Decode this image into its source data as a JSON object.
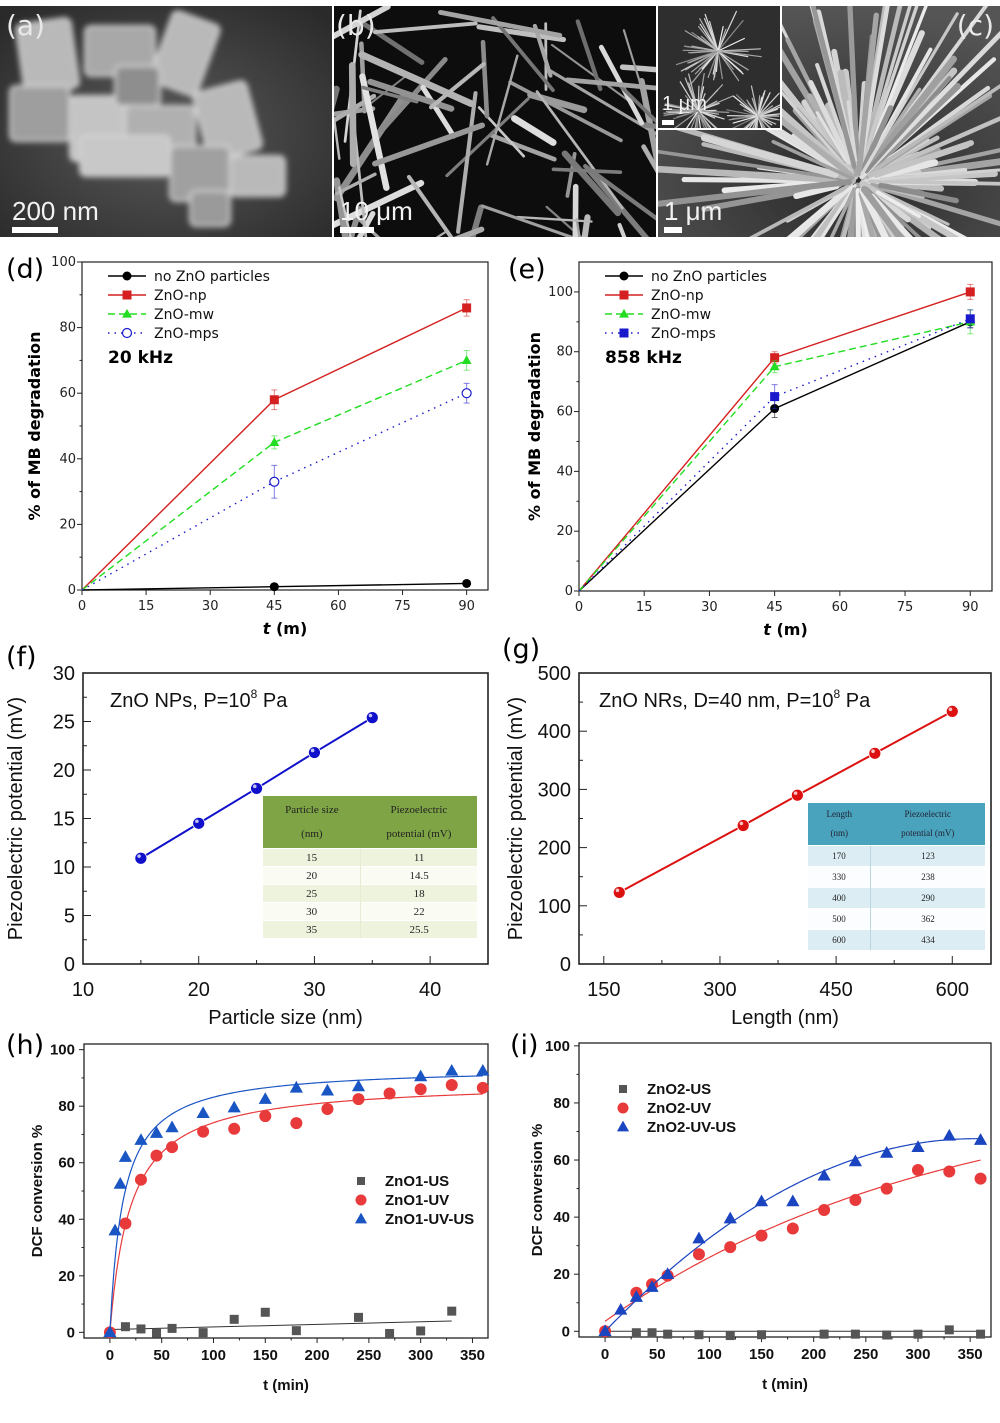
{
  "figure": {
    "panels": {
      "a": {
        "label": "(a)",
        "type": "sem-image",
        "scale_label": "200 nm"
      },
      "b": {
        "label": "(b)",
        "type": "sem-image",
        "scale_label": "10 μm"
      },
      "c": {
        "label": "(c)",
        "type": "sem-image",
        "scale_label": "1 μm",
        "inset_scale_label": "1 μm"
      }
    }
  },
  "chart_data": [
    {
      "id": "d",
      "panel_label": "(d)",
      "type": "line",
      "annotation": "20 kHz",
      "xlabel": "t (m)",
      "ylabel": "% of MB degradation",
      "xlim": [
        0,
        95
      ],
      "ylim": [
        0,
        100
      ],
      "xticks": [
        "0",
        "15",
        "30",
        "45",
        "60",
        "75",
        "90"
      ],
      "yticks": [
        "0",
        "20",
        "40",
        "60",
        "80",
        "100"
      ],
      "legend_position": "top-left",
      "x": [
        0,
        45,
        90
      ],
      "series": [
        {
          "name": "no ZnO particles",
          "color": "#000000",
          "marker": "circle",
          "line": "solid",
          "values": [
            0,
            1,
            2
          ],
          "errors": [
            0,
            0,
            0
          ]
        },
        {
          "name": "ZnO-np",
          "color": "#d42020",
          "marker": "square",
          "line": "solid",
          "values": [
            0,
            58,
            86
          ],
          "errors": [
            0,
            3,
            2.5
          ]
        },
        {
          "name": "ZnO-mw",
          "color": "#22dd22",
          "marker": "triangle",
          "line": "dashed",
          "values": [
            0,
            45,
            70
          ],
          "errors": [
            0,
            2,
            3
          ]
        },
        {
          "name": "ZnO-mps",
          "color": "#1a1acc",
          "marker": "open-circle",
          "line": "dotted",
          "values": [
            0,
            33,
            60
          ],
          "errors": [
            0,
            5,
            3
          ]
        }
      ]
    },
    {
      "id": "e",
      "panel_label": "(e)",
      "type": "line",
      "annotation": "858 kHz",
      "xlabel": "t (m)",
      "ylabel": "% of MB degradation",
      "xlim": [
        0,
        95
      ],
      "ylim": [
        0,
        110
      ],
      "xticks": [
        "0",
        "15",
        "30",
        "45",
        "60",
        "75",
        "90"
      ],
      "yticks": [
        "0",
        "20",
        "40",
        "60",
        "80",
        "100"
      ],
      "legend_position": "top-left",
      "x": [
        0,
        45,
        90
      ],
      "series": [
        {
          "name": "no ZnO particles",
          "color": "#000000",
          "marker": "circle",
          "line": "solid",
          "values": [
            0,
            61,
            90
          ],
          "errors": [
            0,
            3,
            2
          ]
        },
        {
          "name": "ZnO-np",
          "color": "#d42020",
          "marker": "square",
          "line": "solid",
          "values": [
            0,
            78,
            100
          ],
          "errors": [
            0,
            2,
            2.5
          ]
        },
        {
          "name": "ZnO-mw",
          "color": "#22dd22",
          "marker": "triangle",
          "line": "dashed",
          "values": [
            0,
            75,
            90
          ],
          "errors": [
            0,
            2,
            4
          ]
        },
        {
          "name": "ZnO-mps",
          "color": "#1a1acc",
          "marker": "square",
          "line": "dotted",
          "values": [
            0,
            65,
            91
          ],
          "errors": [
            0,
            4,
            3
          ]
        }
      ]
    },
    {
      "id": "f",
      "panel_label": "(f)",
      "type": "line",
      "annotation": "ZnO NPs, P=10",
      "annotation_sup": "8",
      "annotation_suffix": " Pa",
      "xlabel": "Particle size (nm)",
      "ylabel": "Piezoelectric  potential (mV)",
      "xlim": [
        10,
        45
      ],
      "ylim": [
        0,
        30
      ],
      "xticks": [
        "10",
        "20",
        "30",
        "40"
      ],
      "yticks": [
        "0",
        "5",
        "10",
        "15",
        "20",
        "25",
        "30"
      ],
      "series": [
        {
          "name": "ZnO NPs",
          "color": "#1010cc",
          "x": [
            15,
            20,
            25,
            30,
            35
          ],
          "values": [
            10.9,
            14.5,
            18.1,
            21.8,
            25.4
          ]
        }
      ],
      "table": {
        "headers": [
          "Particle size (nm)",
          "Piezoelectric potential (mV)"
        ],
        "header_lines": [
          [
            "Particle size",
            "(nm)"
          ],
          [
            "Piezoelectric",
            "potential (mV)"
          ]
        ],
        "rows": [
          [
            "15",
            "11"
          ],
          [
            "20",
            "14.5"
          ],
          [
            "25",
            "18"
          ],
          [
            "30",
            "22"
          ],
          [
            "35",
            "25.5"
          ]
        ]
      }
    },
    {
      "id": "g",
      "panel_label": "(g)",
      "type": "line",
      "annotation": "ZnO NRs, D=40 nm, P=10",
      "annotation_sup": "8",
      "annotation_suffix": " Pa",
      "xlabel": "Length (nm)",
      "ylabel": "Piezoelectric  potential (mV)",
      "xlim": [
        118,
        650
      ],
      "ylim": [
        0,
        500
      ],
      "xticks": [
        "150",
        "300",
        "450",
        "600"
      ],
      "yticks": [
        "0",
        "100",
        "200",
        "300",
        "400",
        "500"
      ],
      "series": [
        {
          "name": "ZnO NRs",
          "color": "#dd1010",
          "x": [
            170,
            330,
            400,
            500,
            600
          ],
          "values": [
            123,
            238,
            290,
            362,
            434
          ]
        }
      ],
      "table": {
        "headers": [
          "Length (nm)",
          "Piezoelectric potential (mV)"
        ],
        "header_lines": [
          [
            "Length",
            "(nm)"
          ],
          [
            "Piezoelectric",
            "potential (mV)"
          ]
        ],
        "rows": [
          [
            "170",
            "123"
          ],
          [
            "330",
            "238"
          ],
          [
            "400",
            "290"
          ],
          [
            "500",
            "362"
          ],
          [
            "600",
            "434"
          ]
        ]
      }
    },
    {
      "id": "h",
      "panel_label": "(h)",
      "type": "scatter",
      "xlabel": "t (min)",
      "ylabel": "DCF conversion %",
      "xlim": [
        -25,
        365
      ],
      "ylim": [
        -2,
        102
      ],
      "xticks": [
        "0",
        "50",
        "100",
        "150",
        "200",
        "250",
        "300",
        "350"
      ],
      "yticks": [
        "0",
        "20",
        "40",
        "60",
        "80",
        "100"
      ],
      "legend_position": "center-right",
      "series": [
        {
          "name": "ZnO1-US",
          "color": "#555555",
          "marker": "square",
          "x": [
            0,
            15,
            30,
            45,
            60,
            90,
            120,
            150,
            180,
            240,
            270,
            300,
            330
          ],
          "values": [
            0,
            2,
            1.2,
            -0.3,
            1.4,
            -0.1,
            4.6,
            7.1,
            0.6,
            5.3,
            -0.4,
            0.5,
            7.5
          ],
          "fit": {
            "x": [
              0,
              330
            ],
            "y": [
              1,
              4
            ]
          }
        },
        {
          "name": "ZnO1-UV",
          "color": "#e83a3a",
          "marker": "circle",
          "x": [
            0,
            15,
            30,
            45,
            60,
            90,
            120,
            150,
            180,
            210,
            240,
            270,
            300,
            330,
            360
          ],
          "values": [
            0,
            38.5,
            54,
            62.5,
            65.5,
            71,
            72,
            76.5,
            74,
            79,
            82.5,
            84.5,
            86,
            87.5,
            86.5
          ],
          "fit": {
            "type": "hyperbolic",
            "ymax": 89,
            "k": 20
          }
        },
        {
          "name": "ZnO1-UV-US",
          "color": "#1a55c4",
          "marker": "triangle",
          "x": [
            0,
            5,
            10,
            15,
            30,
            45,
            60,
            90,
            120,
            150,
            180,
            210,
            240,
            300,
            330,
            360
          ],
          "values": [
            0,
            36,
            52.5,
            62,
            68,
            70.5,
            72.5,
            77.5,
            79.5,
            82.5,
            86.5,
            85.5,
            87,
            90.5,
            92.5,
            92.5
          ],
          "fit": {
            "type": "hyperbolic",
            "ymax": 94,
            "k": 13
          }
        }
      ]
    },
    {
      "id": "i",
      "panel_label": "(i)",
      "type": "scatter",
      "xlabel": "t (min)",
      "ylabel": "DCF conversion %",
      "xlim": [
        -25,
        370
      ],
      "ylim": [
        -2,
        101
      ],
      "xticks": [
        "0",
        "50",
        "100",
        "150",
        "200",
        "250",
        "300",
        "350"
      ],
      "yticks": [
        "0",
        "20",
        "40",
        "60",
        "80",
        "100"
      ],
      "legend_position": "top-left",
      "series": [
        {
          "name": "ZnO2-US",
          "color": "#555555",
          "marker": "square",
          "x": [
            0,
            30,
            45,
            60,
            90,
            120,
            150,
            210,
            240,
            270,
            300,
            330,
            360
          ],
          "values": [
            0,
            -0.5,
            -0.5,
            -1,
            -1.2,
            -1.5,
            -1.2,
            -1,
            -1,
            -1.3,
            -1,
            0.5,
            -1
          ],
          "fit": {
            "x": [
              0,
              360
            ],
            "y": [
              0,
              0
            ]
          }
        },
        {
          "name": "ZnO2-UV",
          "color": "#e83a3a",
          "marker": "circle",
          "x": [
            0,
            30,
            45,
            60,
            90,
            120,
            150,
            180,
            210,
            240,
            270,
            300,
            330,
            360
          ],
          "values": [
            0,
            13.5,
            16.5,
            19.5,
            27,
            29.5,
            33.5,
            36,
            42.5,
            46,
            50,
            56.5,
            56,
            53.5
          ],
          "fit": {
            "type": "exp",
            "a": 84,
            "k": 0.0031,
            "b": 3.5
          }
        },
        {
          "name": "ZnO2-UV-US",
          "color": "#1a44c0",
          "marker": "triangle",
          "x": [
            0,
            15,
            30,
            45,
            60,
            90,
            120,
            150,
            180,
            210,
            240,
            270,
            300,
            330,
            360
          ],
          "values": [
            0,
            7.5,
            12,
            15.5,
            20,
            32.5,
            39.5,
            45.5,
            45.5,
            54.5,
            59.5,
            62.5,
            64.5,
            68.5,
            67
          ],
          "fit": {
            "type": "poly",
            "c": [
              0,
              0.38,
              -0.000535
            ]
          }
        }
      ]
    }
  ]
}
